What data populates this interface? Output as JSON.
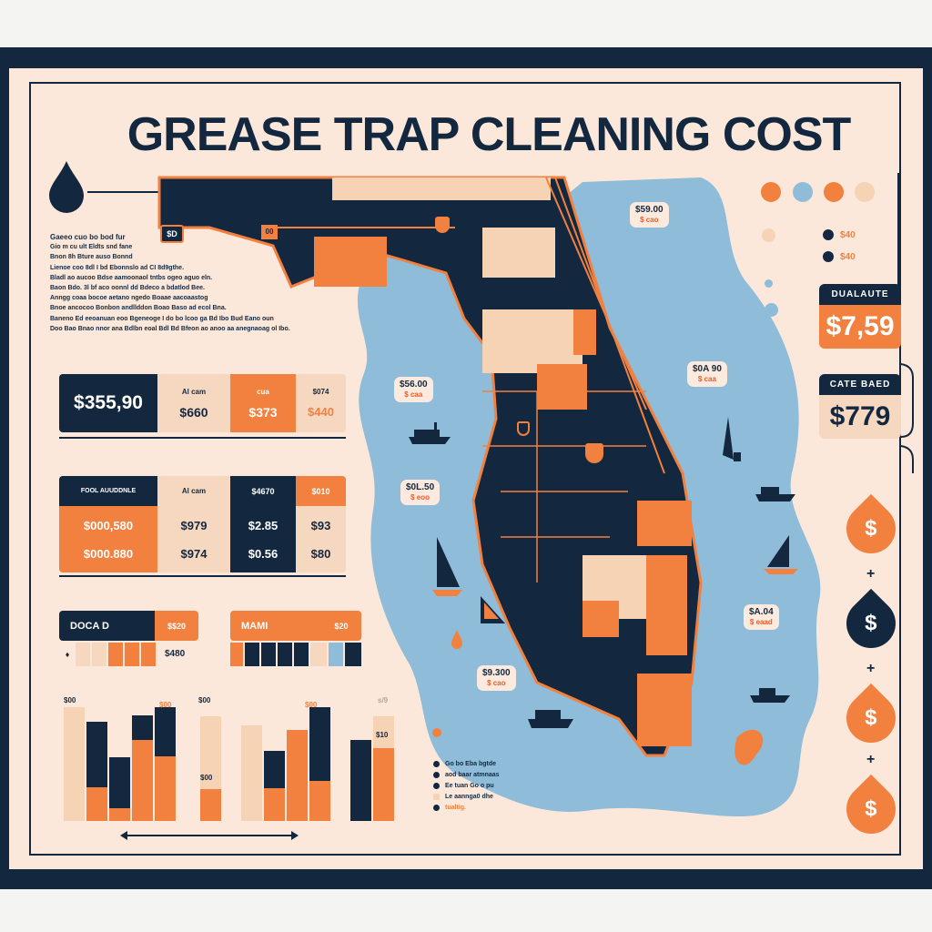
{
  "title": "GREASE TRAP CLEANING COST",
  "intro": [
    "Gaeeo cuo bo bod fur",
    "Gio m cu ult Eldts snd fane",
    "Bnon 8h Bture auso Bonnd",
    "Lienoe coo 8dl I bd Ebonnslo ad CI 8d9gthe.",
    "Bladl ao aucoo Bdse aamoonaol tntbs ogeo aguo eln.",
    "Baon Bdo. 3l bf aco oonnl dd Bdeco a bdatlod Bee.",
    "Anngg coaa bocoe aetano ngedo Boaae aacoaastog",
    "Bnoe ancocoo Bonbon andllddon Boao Baso ad ecol Bna.",
    "Baneno Ed eeoanuan eoo Bgeneoge I do bo lcoo ga Bd Ibo Bud Eano oun",
    "Doo Bao Bnao nnor ana Bdlbn eoal Bdl Bd Bfeon ao anoo aa anegnaoag ol Ibo."
  ],
  "table1": {
    "total": "$355,90",
    "col_labels": [
      "Al cam",
      "cua",
      "$074"
    ],
    "values": [
      "$660",
      "$373",
      "$440"
    ]
  },
  "table2": {
    "header": "FOOL AUUDDNLE",
    "col_labels": [
      "Al cam",
      "$4670",
      "$010"
    ],
    "rows": [
      [
        "$000,580",
        "$979",
        "$2.85",
        "$93"
      ],
      [
        "$000.880",
        "$974",
        "$0.56",
        "$80"
      ]
    ]
  },
  "mini1": {
    "label": "DOCA D",
    "value": "$$20",
    "sub": "$480"
  },
  "mini2": {
    "label": "MAMI",
    "value": "$20"
  },
  "bars": {
    "labels": [
      "$00",
      "$00",
      "$00",
      "$00",
      "$00",
      "$0",
      "$0",
      "$00",
      "s/9",
      "$10"
    ],
    "group1": [
      {
        "total": 100,
        "orange": 0,
        "peach": true
      },
      {
        "total": 87,
        "orange": 30
      },
      {
        "total": 56,
        "orange": 11
      },
      {
        "total": 93,
        "orange": 71
      },
      {
        "total": 100,
        "orange": 57
      }
    ],
    "group2": [
      {
        "total": 92,
        "orange": 28,
        "peach": true
      }
    ],
    "group3": [
      {
        "total": 84,
        "orange": 0,
        "peach": true
      },
      {
        "total": 62,
        "orange": 29
      },
      {
        "total": 80,
        "orange": 80
      },
      {
        "total": 100,
        "orange": 35
      }
    ],
    "group4": [
      {
        "total": 71,
        "orange": 0
      },
      {
        "total": 92,
        "orange": 64,
        "peachtop": true
      }
    ]
  },
  "map_callouts": [
    {
      "price": "$59.00",
      "sub": "$ cao"
    },
    {
      "price": "$56.00",
      "sub": "$ caa"
    },
    {
      "price": "$0A 90",
      "sub": "$ caa"
    },
    {
      "price": "$0L.50",
      "sub": "$ eoo"
    },
    {
      "price": "$A.04",
      "sub": "$ eaad"
    },
    {
      "price": "$9.300",
      "sub": "$ cao"
    }
  ],
  "map_badges": [
    "$D",
    "00"
  ],
  "legend": [
    "Go bo Eba bgtde",
    "aod baar atmnaas",
    "Ee tuan Go o pu",
    "Le aannga0 dhe",
    "tualtig."
  ],
  "right_legend": [
    "$40",
    "$40"
  ],
  "price_boxes": [
    {
      "label": "DUALAUTE",
      "value": "$7,59"
    },
    {
      "label": "CATE BAED",
      "value": "$779"
    }
  ],
  "drops": [
    "$",
    "$",
    "$",
    "$"
  ],
  "plus": [
    "+",
    "+",
    "+"
  ],
  "colors": {
    "navy": "#13283f",
    "orange": "#f2803f",
    "peach": "#f6d3b5",
    "water": "#8fbcd9",
    "cream": "#fbe8da"
  }
}
